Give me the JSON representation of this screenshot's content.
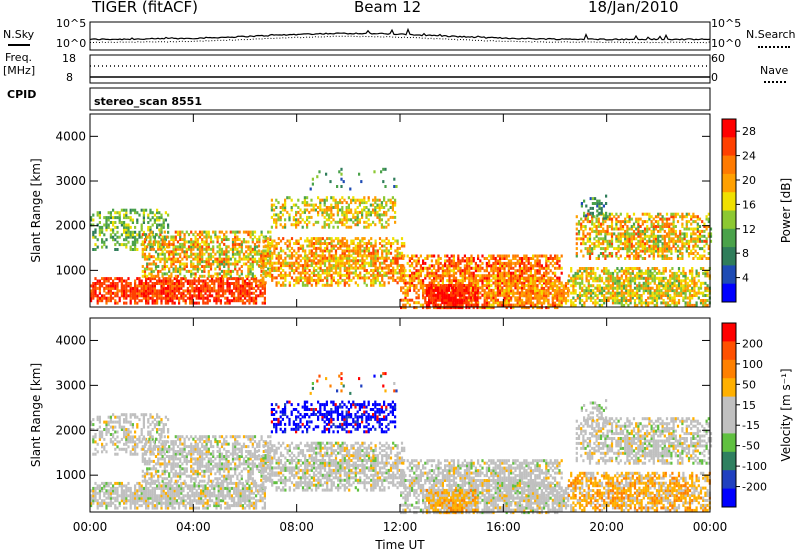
{
  "header": {
    "radar": "TIGER (fitACF)",
    "beam": "Beam 12",
    "date": "18/Jan/2010"
  },
  "top_panels": {
    "nsky_label": "N.Sky",
    "nsearch_label": "N.Search",
    "noise_ticks": [
      "10^5",
      "10^0"
    ],
    "freq_label_1": "Freq.",
    "freq_label_2": "[MHz]",
    "freq_ticks": [
      "18",
      "8"
    ],
    "nave_label": "Nave",
    "nave_ticks": [
      "60",
      "0"
    ],
    "cpid_label": "CPID",
    "cpid_value": "stereo_scan 8551"
  },
  "colors": {
    "power": [
      "#0000ff",
      "#1e4bb4",
      "#2f7d5a",
      "#4aa24a",
      "#8cc832",
      "#f0e000",
      "#ffa000",
      "#ff7a00",
      "#ff4000",
      "#ff0000"
    ],
    "velocity": [
      "#0000ff",
      "#2040c0",
      "#2f8060",
      "#60c040",
      "#c0c0c0",
      "#c0c0c0",
      "#ffb000",
      "#ff8000",
      "#ff5000",
      "#ff0000"
    ]
  },
  "chart_data": [
    {
      "type": "heatmap",
      "name": "power",
      "ylabel": "Slant Range [km]",
      "xlim": [
        "00:00",
        "00:00"
      ],
      "ylim": [
        180,
        4500
      ],
      "y_ticks": [
        1000,
        2000,
        3000,
        4000
      ],
      "x_ticks": [
        "00:00",
        "04:00",
        "08:00",
        "12:00",
        "16:00",
        "20:00",
        "00:00"
      ],
      "colorbar_label": "Power [dB]",
      "colorbar_ticks": [
        4,
        8,
        12,
        16,
        20,
        24,
        28
      ],
      "colorbar_range": [
        0,
        30
      ]
    },
    {
      "type": "heatmap",
      "name": "velocity",
      "ylabel": "Slant Range [km]",
      "xlabel": "Time UT",
      "xlim": [
        "00:00",
        "00:00"
      ],
      "ylim": [
        180,
        4500
      ],
      "y_ticks": [
        1000,
        2000,
        3000,
        4000
      ],
      "x_ticks": [
        "00:00",
        "04:00",
        "08:00",
        "12:00",
        "16:00",
        "20:00",
        "00:00"
      ],
      "colorbar_label": "Velocity [m s⁻¹]",
      "colorbar_ticks": [
        "200",
        "100",
        "50",
        "15",
        "-15",
        "-50",
        "-100",
        "-200"
      ]
    }
  ]
}
